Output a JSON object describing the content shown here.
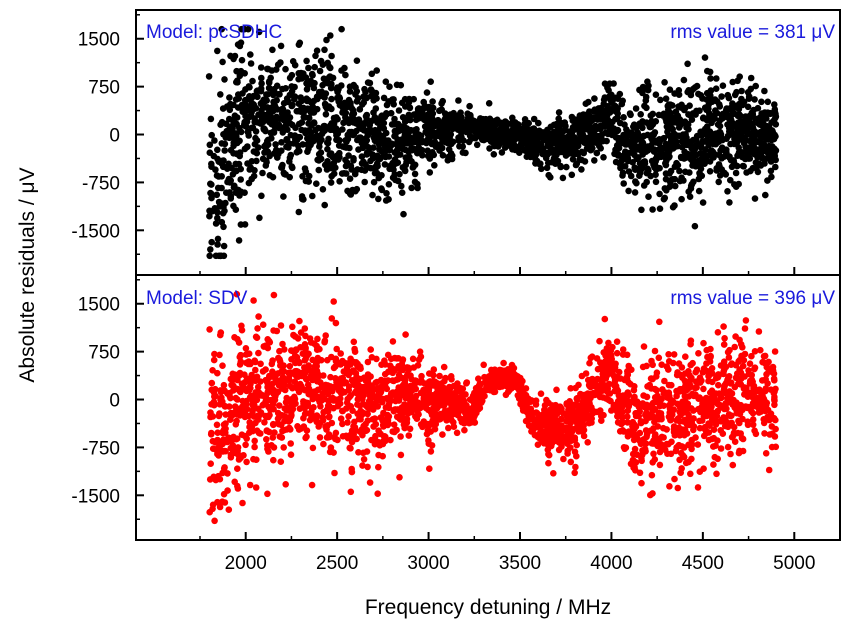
{
  "figure": {
    "xlabel": "Frequency detuning / MHz",
    "ylabel": "Absolute residuals / μV"
  },
  "chart_data": [
    {
      "type": "scatter",
      "model_label": "Model: pcSDHC",
      "rms_label": "rms value = 381 μV",
      "annotation_color": "#1a1adc",
      "color": "#000000",
      "xlim": [
        1400,
        5250
      ],
      "ylim": [
        -2200,
        1950
      ],
      "yticks": [
        1500,
        750,
        0,
        -750,
        -1500
      ],
      "ytick_labels": [
        "1500",
        "750",
        "0",
        "-750",
        "-1500"
      ],
      "x_range": [
        1800,
        4900
      ],
      "envelope": [
        [
          1800,
          -700,
          800
        ],
        [
          1850,
          -650,
          900
        ],
        [
          1900,
          -450,
          800
        ],
        [
          2000,
          200,
          650
        ],
        [
          2100,
          250,
          500
        ],
        [
          2200,
          200,
          500
        ],
        [
          2300,
          250,
          500
        ],
        [
          2400,
          250,
          500
        ],
        [
          2500,
          150,
          550
        ],
        [
          2600,
          50,
          500
        ],
        [
          2700,
          -50,
          450
        ],
        [
          2800,
          -100,
          400
        ],
        [
          2900,
          -50,
          350
        ],
        [
          3000,
          50,
          250
        ],
        [
          3100,
          100,
          200
        ],
        [
          3200,
          100,
          170
        ],
        [
          3300,
          60,
          120
        ],
        [
          3400,
          30,
          110
        ],
        [
          3500,
          -60,
          130
        ],
        [
          3600,
          -150,
          170
        ],
        [
          3700,
          -170,
          220
        ],
        [
          3800,
          -80,
          220
        ],
        [
          3900,
          100,
          220
        ],
        [
          4000,
          350,
          260
        ],
        [
          4050,
          -100,
          350
        ],
        [
          4100,
          -150,
          450
        ],
        [
          4200,
          -200,
          450
        ],
        [
          4300,
          -150,
          450
        ],
        [
          4400,
          -100,
          450
        ],
        [
          4500,
          -50,
          450
        ],
        [
          4600,
          0,
          400
        ],
        [
          4700,
          50,
          400
        ],
        [
          4800,
          0,
          350
        ],
        [
          4900,
          -50,
          300
        ]
      ],
      "count": 2600,
      "seed": 11
    },
    {
      "type": "scatter",
      "model_label": "Model: SDV",
      "rms_label": "rms value = 396 μV",
      "annotation_color": "#1a1adc",
      "color": "#ff0000",
      "xlim": [
        1400,
        5250
      ],
      "ylim": [
        -2200,
        1950
      ],
      "yticks": [
        1500,
        750,
        0,
        -750,
        -1500
      ],
      "ytick_labels": [
        "1500",
        "750",
        "0",
        "-750",
        "-1500"
      ],
      "x_range": [
        1800,
        4900
      ],
      "envelope": [
        [
          1800,
          -500,
          700
        ],
        [
          1850,
          -450,
          750
        ],
        [
          1900,
          -250,
          700
        ],
        [
          2000,
          0,
          550
        ],
        [
          2100,
          100,
          500
        ],
        [
          2200,
          150,
          500
        ],
        [
          2300,
          200,
          500
        ],
        [
          2400,
          200,
          500
        ],
        [
          2500,
          100,
          500
        ],
        [
          2600,
          0,
          500
        ],
        [
          2700,
          -50,
          450
        ],
        [
          2800,
          -50,
          400
        ],
        [
          2900,
          0,
          350
        ],
        [
          3000,
          0,
          300
        ],
        [
          3100,
          0,
          250
        ],
        [
          3200,
          -150,
          180
        ],
        [
          3250,
          -80,
          150
        ],
        [
          3300,
          200,
          120
        ],
        [
          3400,
          350,
          80
        ],
        [
          3500,
          200,
          120
        ],
        [
          3550,
          -150,
          150
        ],
        [
          3600,
          -400,
          180
        ],
        [
          3700,
          -500,
          250
        ],
        [
          3800,
          -400,
          250
        ],
        [
          3900,
          100,
          250
        ],
        [
          4000,
          550,
          280
        ],
        [
          4050,
          0,
          350
        ],
        [
          4100,
          -300,
          450
        ],
        [
          4200,
          -350,
          450
        ],
        [
          4300,
          -300,
          450
        ],
        [
          4400,
          -200,
          450
        ],
        [
          4500,
          -100,
          450
        ],
        [
          4600,
          0,
          450
        ],
        [
          4700,
          150,
          450
        ],
        [
          4800,
          50,
          400
        ],
        [
          4900,
          -50,
          350
        ]
      ],
      "count": 2600,
      "seed": 23
    }
  ],
  "x_axis": {
    "ticks": [
      2000,
      2500,
      3000,
      3500,
      4000,
      4500,
      5000
    ],
    "tick_labels": [
      "2000",
      "2500",
      "3000",
      "3500",
      "4000",
      "4500",
      "5000"
    ]
  }
}
